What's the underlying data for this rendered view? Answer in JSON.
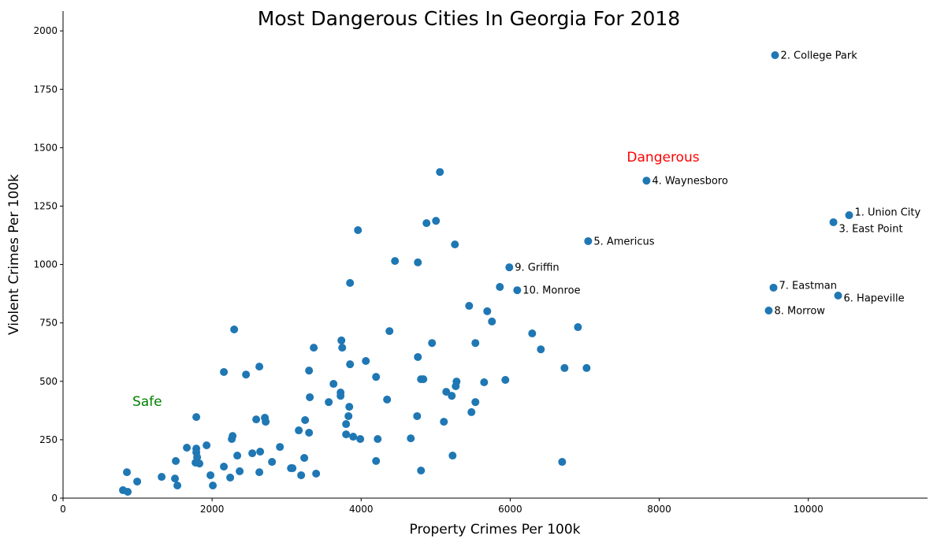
{
  "chart_data": {
    "type": "scatter",
    "title": "Most Dangerous Cities In Georgia For 2018",
    "xlabel": "Property Crimes Per 100k",
    "ylabel": "Violent Crimes Per 100k",
    "xlim": [
      0,
      11600
    ],
    "ylim": [
      0,
      2085
    ],
    "xticks": [
      0,
      2000,
      4000,
      6000,
      8000,
      10000
    ],
    "yticks": [
      0,
      250,
      500,
      750,
      1000,
      1250,
      1500,
      1750,
      2000
    ],
    "grid": false,
    "marker_color": "#1f77b4",
    "annotations": [
      {
        "text": "Dangerous",
        "x": 7565,
        "y": 1440,
        "color": "#ff0000"
      },
      {
        "text": "Safe",
        "x": 930,
        "y": 395,
        "color": "#008000"
      }
    ],
    "labeled_points": [
      {
        "label": "1. Union City",
        "x": 10548,
        "y": 1211
      },
      {
        "label": "2. College Park",
        "x": 9554,
        "y": 1896
      },
      {
        "label": "3. East Point",
        "x": 10337,
        "y": 1181
      },
      {
        "label": "4. Waynesboro",
        "x": 7829,
        "y": 1359
      },
      {
        "label": "5. Americus",
        "x": 7046,
        "y": 1100
      },
      {
        "label": "6. Hapeville",
        "x": 10400,
        "y": 867
      },
      {
        "label": "7. Eastman",
        "x": 9533,
        "y": 901
      },
      {
        "label": "8. Morrow",
        "x": 9469,
        "y": 803
      },
      {
        "label": "9. Griffin",
        "x": 5988,
        "y": 988
      },
      {
        "label": "10. Monroe",
        "x": 6094,
        "y": 890
      }
    ],
    "points": [
      [
        5057,
        1396
      ],
      [
        3957,
        1147
      ],
      [
        5004,
        1187
      ],
      [
        4877,
        1177
      ],
      [
        5258,
        1086
      ],
      [
        4454,
        1015
      ],
      [
        4761,
        1009
      ],
      [
        3851,
        921
      ],
      [
        5861,
        904
      ],
      [
        5449,
        823
      ],
      [
        5692,
        800
      ],
      [
        5755,
        756
      ],
      [
        2296,
        722
      ],
      [
        6909,
        732
      ],
      [
        6295,
        705
      ],
      [
        4380,
        715
      ],
      [
        6411,
        637
      ],
      [
        3364,
        644
      ],
      [
        3735,
        675
      ],
      [
        3746,
        644
      ],
      [
        4951,
        664
      ],
      [
        5533,
        664
      ],
      [
        4761,
        604
      ],
      [
        4063,
        587
      ],
      [
        3851,
        573
      ],
      [
        2634,
        563
      ],
      [
        2158,
        540
      ],
      [
        2455,
        529
      ],
      [
        3301,
        546
      ],
      [
        4200,
        519
      ],
      [
        6729,
        557
      ],
      [
        7025,
        557
      ],
      [
        4803,
        509
      ],
      [
        4835,
        509
      ],
      [
        5280,
        499
      ],
      [
        5269,
        479
      ],
      [
        5650,
        496
      ],
      [
        5935,
        506
      ],
      [
        5142,
        455
      ],
      [
        5216,
        438
      ],
      [
        3629,
        489
      ],
      [
        3724,
        452
      ],
      [
        3724,
        438
      ],
      [
        3311,
        432
      ],
      [
        3565,
        411
      ],
      [
        4348,
        422
      ],
      [
        3841,
        391
      ],
      [
        3830,
        351
      ],
      [
        3798,
        317
      ],
      [
        3798,
        273
      ],
      [
        3893,
        263
      ],
      [
        3988,
        253
      ],
      [
        4222,
        253
      ],
      [
        4666,
        256
      ],
      [
        4751,
        351
      ],
      [
        5110,
        327
      ],
      [
        5533,
        411
      ],
      [
        5480,
        368
      ],
      [
        4200,
        159
      ],
      [
        4803,
        118
      ],
      [
        5227,
        182
      ],
      [
        6697,
        155
      ],
      [
        1788,
        347
      ],
      [
        2592,
        337
      ],
      [
        2708,
        344
      ],
      [
        2719,
        327
      ],
      [
        3248,
        334
      ],
      [
        3163,
        290
      ],
      [
        3301,
        280
      ],
      [
        1661,
        216
      ],
      [
        1788,
        212
      ],
      [
        1788,
        196
      ],
      [
        1799,
        175
      ],
      [
        1926,
        226
      ],
      [
        1778,
        152
      ],
      [
        1830,
        148
      ],
      [
        1513,
        159
      ],
      [
        2275,
        266
      ],
      [
        2264,
        253
      ],
      [
        2338,
        182
      ],
      [
        2539,
        192
      ],
      [
        2645,
        199
      ],
      [
        2910,
        219
      ],
      [
        2804,
        155
      ],
      [
        3237,
        172
      ],
      [
        3058,
        128
      ],
      [
        3079,
        128
      ],
      [
        3195,
        98
      ],
      [
        3396,
        105
      ],
      [
        2634,
        111
      ],
      [
        2370,
        115
      ],
      [
        2158,
        135
      ],
      [
        2243,
        88
      ],
      [
        1978,
        98
      ],
      [
        2010,
        54
      ],
      [
        1534,
        54
      ],
      [
        1502,
        84
      ],
      [
        1323,
        91
      ],
      [
        995,
        71
      ],
      [
        857,
        111
      ],
      [
        804,
        34
      ],
      [
        868,
        27
      ]
    ]
  }
}
